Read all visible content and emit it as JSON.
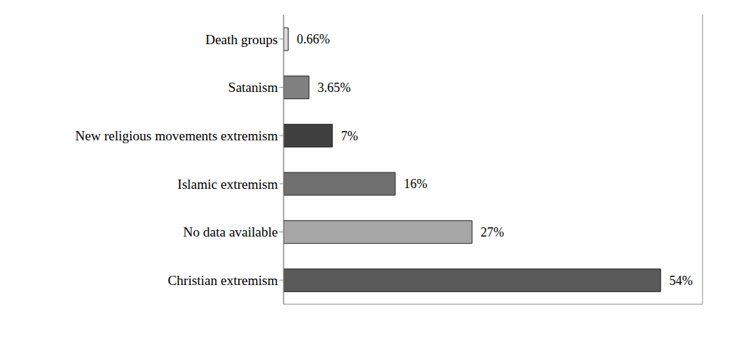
{
  "chart_data": {
    "type": "bar",
    "orientation": "horizontal",
    "categories": [
      "Death groups",
      "Satanism",
      "New religious movements extremism",
      "Islamic extremism",
      "No data available",
      "Christian extremism"
    ],
    "values": [
      0.66,
      3.65,
      7,
      16,
      27,
      54
    ],
    "value_labels": [
      "0.66%",
      "3.65%",
      "7%",
      "16%",
      "27%",
      "54%"
    ],
    "colors": [
      "#d9d9d9",
      "#808080",
      "#404040",
      "#707070",
      "#a6a6a6",
      "#595959"
    ],
    "xlim": [
      0,
      60
    ],
    "xticks": [
      0,
      10,
      20,
      30,
      40,
      50,
      60
    ],
    "grid": true,
    "data_labels": true,
    "tick_labels": "y"
  }
}
